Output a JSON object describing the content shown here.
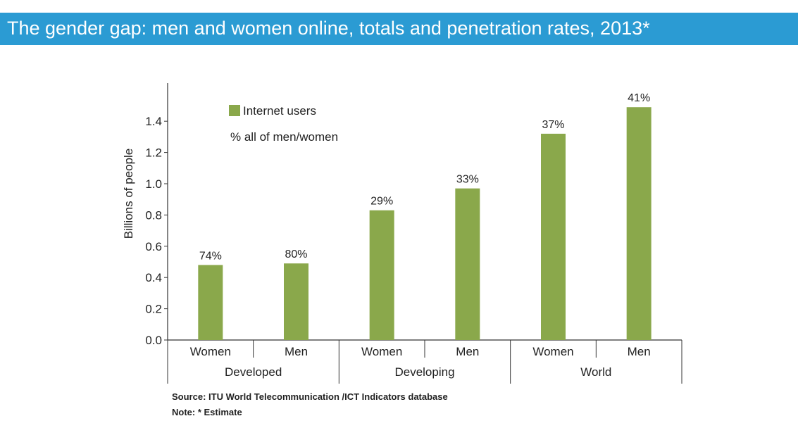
{
  "header": {
    "title": "The gender gap: men and women online, totals and penetration rates, 2013*"
  },
  "colors": {
    "title_bar": "#2b9bd3",
    "bar": "#8aa84b"
  },
  "chart_data": {
    "type": "bar",
    "ylabel": "Billions of people",
    "ylim": [
      0,
      1.5
    ],
    "yticks": [
      "0.0",
      "0.2",
      "0.4",
      "0.6",
      "0.8",
      "1.0",
      "1.2",
      "1.4"
    ],
    "categories": [
      "Women",
      "Men",
      "Women",
      "Men",
      "Women",
      "Men"
    ],
    "groups": [
      {
        "label": "Developed",
        "categories": [
          "Women",
          "Men"
        ]
      },
      {
        "label": "Developing",
        "categories": [
          "Women",
          "Men"
        ]
      },
      {
        "label": "World",
        "categories": [
          "Women",
          "Men"
        ]
      }
    ],
    "series": [
      {
        "name": "Internet users",
        "values": [
          0.48,
          0.49,
          0.83,
          0.97,
          1.32,
          1.49
        ]
      }
    ],
    "data_labels": [
      "74%",
      "80%",
      "29%",
      "33%",
      "37%",
      "41%"
    ],
    "legend": {
      "items": [
        "Internet users",
        "% all of men/women"
      ],
      "position": "top-left"
    },
    "grid": false
  },
  "footer": {
    "source": "Source:  ITU World Telecommunication /ICT Indicators database",
    "note": "Note: * Estimate"
  }
}
